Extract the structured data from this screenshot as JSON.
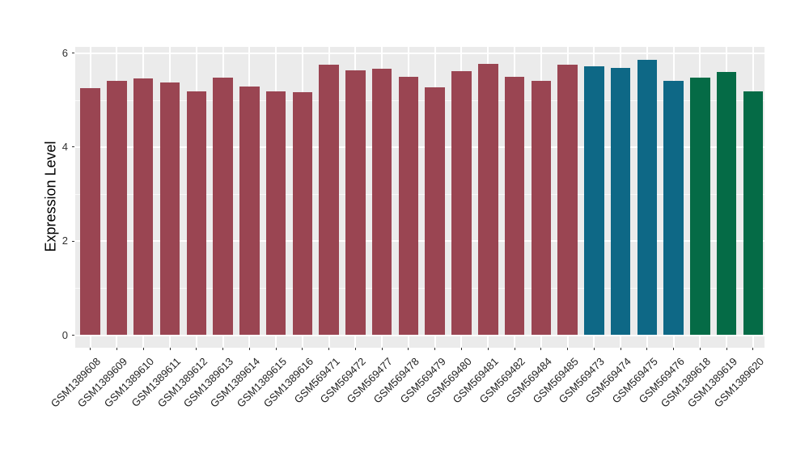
{
  "chart_data": {
    "type": "bar",
    "title": "",
    "xlabel": "",
    "ylabel": "Expression Level",
    "ylim": [
      0,
      6
    ],
    "yticks": [
      0,
      2,
      4,
      6
    ],
    "yticks_minor": [
      1,
      3,
      5
    ],
    "legend": "none",
    "grid": "major-and-minor-white-on-gray-panel",
    "panel_background": "#EBEBEB",
    "gridline_color": "#FFFFFF",
    "tick_color": "#333333",
    "categories": [
      "GSM1389608",
      "GSM1389609",
      "GSM1389610",
      "GSM1389611",
      "GSM1389612",
      "GSM1389613",
      "GSM1389614",
      "GSM1389615",
      "GSM1389616",
      "GSM569471",
      "GSM569472",
      "GSM569477",
      "GSM569478",
      "GSM569479",
      "GSM569480",
      "GSM569481",
      "GSM569482",
      "GSM569484",
      "GSM569485",
      "GSM569473",
      "GSM569474",
      "GSM569475",
      "GSM569476",
      "GSM1389618",
      "GSM1389619",
      "GSM1389620"
    ],
    "values": [
      5.26,
      5.41,
      5.46,
      5.38,
      5.19,
      5.48,
      5.28,
      5.18,
      5.16,
      5.75,
      5.64,
      5.67,
      5.5,
      5.27,
      5.62,
      5.77,
      5.5,
      5.4,
      5.76,
      5.72,
      5.69,
      5.86,
      5.4,
      5.47,
      5.6,
      5.19
    ],
    "bar_colors": [
      "#9A4552",
      "#9A4552",
      "#9A4552",
      "#9A4552",
      "#9A4552",
      "#9A4552",
      "#9A4552",
      "#9A4552",
      "#9A4552",
      "#9A4552",
      "#9A4552",
      "#9A4552",
      "#9A4552",
      "#9A4552",
      "#9A4552",
      "#9A4552",
      "#9A4552",
      "#9A4552",
      "#9A4552",
      "#0E6886",
      "#0E6886",
      "#0E6886",
      "#0E6886",
      "#056B46",
      "#056B46",
      "#056B46"
    ],
    "group_palette": {
      "maroon": "#9A4552",
      "teal": "#0E6886",
      "green": "#056B46"
    }
  }
}
